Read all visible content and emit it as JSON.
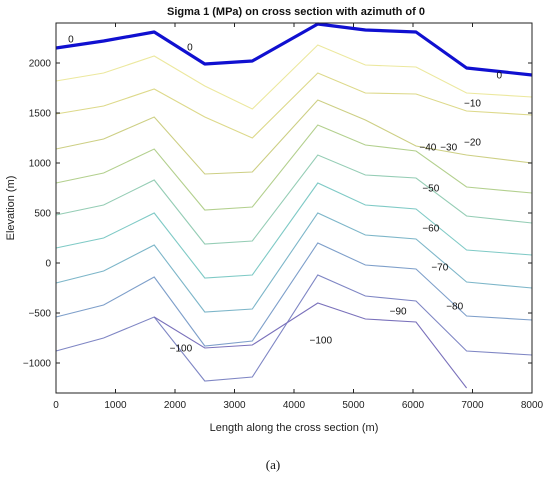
{
  "chart_data": {
    "type": "line",
    "title": "Sigma 1 (MPa) on cross section with azimuth of 0",
    "xlabel": "Length along the cross section (m)",
    "ylabel": "Elevation (m)",
    "xlim": [
      0,
      8000
    ],
    "ylim": [
      -1300,
      2400
    ],
    "xticks": [
      "0",
      "1000",
      "2000",
      "3000",
      "4000",
      "5000",
      "6000",
      "7000",
      "8000"
    ],
    "yticks": [
      "2000",
      "1500",
      "1000",
      "500",
      "0",
      "-500",
      "-1000"
    ],
    "grid": false,
    "caption": "(a)",
    "topography": {
      "label": "0",
      "color": "#1010d0",
      "x": [
        0,
        800,
        1650,
        2500,
        3300,
        4400,
        5200,
        6050,
        6900,
        8000
      ],
      "y": [
        2150,
        2220,
        2310,
        1990,
        2020,
        2390,
        2330,
        2310,
        1950,
        1880
      ]
    },
    "contours": [
      {
        "level": "0",
        "color": "#ece89e",
        "x": [
          0,
          800,
          1650,
          2500,
          3300,
          4400,
          5200,
          6050,
          6900,
          8000
        ],
        "y": [
          1820,
          1900,
          2070,
          1770,
          1540,
          2180,
          1980,
          1960,
          1700,
          1660
        ]
      },
      {
        "level": "-10",
        "color": "#ddd98a",
        "x": [
          0,
          800,
          1650,
          2500,
          3300,
          4400,
          5200,
          6050,
          6900,
          8000
        ],
        "y": [
          1490,
          1570,
          1740,
          1460,
          1250,
          1900,
          1700,
          1690,
          1520,
          1480
        ]
      },
      {
        "level": "-20",
        "color": "#cdcf84",
        "x": [
          0,
          800,
          1650,
          2500,
          3300,
          4400,
          5200,
          6050,
          6900,
          8000
        ],
        "y": [
          1140,
          1240,
          1460,
          890,
          910,
          1630,
          1430,
          1170,
          1080,
          1000
        ]
      },
      {
        "level": "-30",
        "color": "#b3d08e",
        "x": [
          0,
          800,
          1650,
          2500,
          3300,
          4400,
          5200,
          6050,
          6900,
          8000
        ],
        "y": [
          800,
          900,
          1140,
          530,
          560,
          1380,
          1180,
          1120,
          760,
          700
        ]
      },
      {
        "level": "-40",
        "color": "#95cdb5",
        "x": [
          0,
          800,
          1650,
          2500,
          3300,
          4400,
          5200,
          6050,
          6900,
          8000
        ],
        "y": [
          480,
          580,
          830,
          190,
          220,
          1080,
          880,
          850,
          470,
          400
        ]
      },
      {
        "level": "-50",
        "color": "#7fcac6",
        "x": [
          0,
          800,
          1650,
          2500,
          3300,
          4400,
          5200,
          6050,
          6900,
          8000
        ],
        "y": [
          150,
          250,
          500,
          -150,
          -120,
          800,
          580,
          540,
          130,
          80
        ]
      },
      {
        "level": "-60",
        "color": "#7db6c9",
        "x": [
          0,
          800,
          1650,
          2500,
          3300,
          4400,
          5200,
          6050,
          6900,
          8000
        ],
        "y": [
          -200,
          -80,
          180,
          -490,
          -460,
          500,
          280,
          240,
          -190,
          -250
        ]
      },
      {
        "level": "-70",
        "color": "#7e9fca",
        "x": [
          0,
          800,
          1650,
          2500,
          3300,
          4400,
          5200,
          6050,
          6900,
          8000
        ],
        "y": [
          -540,
          -420,
          -140,
          -830,
          -780,
          200,
          -20,
          -60,
          -530,
          -570
        ]
      },
      {
        "level": "-80",
        "color": "#7f86c4",
        "x": [
          0,
          800,
          1650,
          2500,
          3300,
          4400,
          5200,
          6050,
          6900,
          8000
        ],
        "y": [
          -880,
          -750,
          -540,
          -1180,
          -1140,
          -120,
          -330,
          -380,
          -880,
          -920
        ]
      },
      {
        "level": "-90",
        "color": "#7a71bb",
        "x": [
          1650,
          2500,
          3300,
          4400,
          5200,
          6050,
          6900
        ],
        "y": [
          -540,
          -850,
          -820,
          -400,
          -560,
          -590,
          -1250
        ]
      }
    ],
    "contour_labels": [
      {
        "text": "0",
        "x": 250,
        "y": 2230
      },
      {
        "text": "0",
        "x": 2250,
        "y": 2150
      },
      {
        "text": "0",
        "x": 7450,
        "y": 1870
      },
      {
        "text": "-10",
        "x": 7000,
        "y": 1590
      },
      {
        "text": "-20",
        "x": 7000,
        "y": 1200
      },
      {
        "text": "-30",
        "x": 6600,
        "y": 1150
      },
      {
        "text": "-40",
        "x": 6250,
        "y": 1150
      },
      {
        "text": "-50",
        "x": 6300,
        "y": 740
      },
      {
        "text": "-60",
        "x": 6300,
        "y": 340
      },
      {
        "text": "-70",
        "x": 6450,
        "y": -50
      },
      {
        "text": "-80",
        "x": 6700,
        "y": -440
      },
      {
        "text": "-90",
        "x": 5750,
        "y": -490
      },
      {
        "text": "-100",
        "x": 2100,
        "y": -860
      },
      {
        "text": "-100",
        "x": 4450,
        "y": -780
      }
    ]
  }
}
